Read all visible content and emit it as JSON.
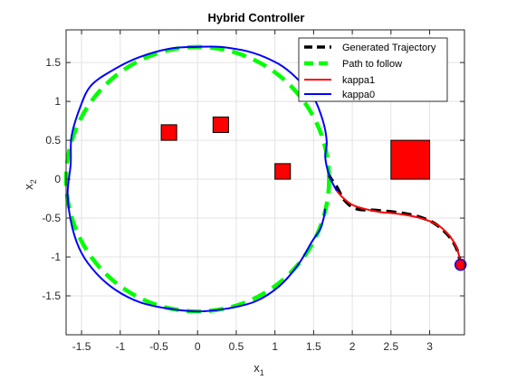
{
  "chart_data": {
    "type": "line",
    "title": "Hybrid Controller",
    "xlabel": {
      "base": "x",
      "sub": "1"
    },
    "ylabel": {
      "base": "x",
      "sub": "2"
    },
    "xlim": [
      -1.7,
      3.45
    ],
    "ylim": [
      -2.0,
      1.92
    ],
    "xticks": [
      -1.5,
      -1,
      -0.5,
      0,
      0.5,
      1,
      1.5,
      2,
      2.5,
      3
    ],
    "xtick_labels": [
      "-1.5",
      "-1",
      "-0.5",
      "0",
      "0.5",
      "1",
      "1.5",
      "2",
      "2.5",
      "3"
    ],
    "yticks": [
      -1.5,
      -1,
      -0.5,
      0,
      0.5,
      1,
      1.5
    ],
    "ytick_labels": [
      "-1.5",
      "-1",
      "-0.5",
      "0",
      "0.5",
      "1",
      "1.5"
    ],
    "grid": true,
    "legend_location": "top-right",
    "colors": {
      "generated": "#000000",
      "path": "#00ff00",
      "kappa1": "#ff0000",
      "kappa0": "#0000ff",
      "obstacle": "#ff0000",
      "start_marker": "#ff0000"
    },
    "series": [
      {
        "name": "Generated Trajectory",
        "style": "dashed",
        "x": [
          3.4,
          3.37,
          3.3,
          3.2,
          3.05,
          2.85,
          2.6,
          2.3,
          2.05,
          1.9,
          1.8,
          1.73,
          1.7
        ],
        "y": [
          -1.12,
          -0.95,
          -0.8,
          -0.68,
          -0.56,
          -0.48,
          -0.43,
          -0.4,
          -0.38,
          -0.27,
          -0.1,
          0.0,
          0.05
        ]
      },
      {
        "name": "Path to follow",
        "style": "dashed",
        "shape": "circle",
        "center": [
          0,
          0
        ],
        "radius": 1.7,
        "x": [
          1.7,
          1.47,
          0.85,
          0,
          -0.85,
          -1.47,
          -1.7,
          -1.47,
          -0.85,
          0,
          0.85,
          1.47,
          1.7
        ],
        "y": [
          0,
          0.85,
          1.47,
          1.7,
          1.47,
          0.85,
          0,
          -0.85,
          -1.47,
          -1.7,
          -1.47,
          -0.85,
          0
        ]
      },
      {
        "name": "kappa1",
        "style": "solid",
        "x": [
          3.4,
          3.38,
          3.33,
          3.25,
          3.12,
          2.95,
          2.75,
          2.55,
          2.35,
          2.15,
          2.0,
          1.88,
          1.8
        ],
        "y": [
          -1.1,
          -0.98,
          -0.84,
          -0.72,
          -0.6,
          -0.52,
          -0.47,
          -0.44,
          -0.42,
          -0.38,
          -0.33,
          -0.24,
          -0.15
        ]
      },
      {
        "name": "kappa0",
        "style": "solid",
        "x": [
          1.8,
          1.73,
          1.68,
          1.65,
          1.67,
          1.62,
          1.5,
          1.28,
          1.05,
          0.7,
          0.3,
          0.0,
          -0.35,
          -0.75,
          -1.1,
          -1.38,
          -1.52,
          -1.63,
          -1.64,
          -1.68,
          -1.62,
          -1.5,
          -1.3,
          -1.05,
          -0.75,
          -0.4,
          0.0,
          0.4,
          0.75,
          1.05,
          1.3,
          1.48,
          1.58,
          1.63,
          1.65
        ],
        "y": [
          -0.15,
          -0.02,
          0.12,
          0.3,
          0.48,
          0.75,
          1.05,
          1.3,
          1.48,
          1.63,
          1.7,
          1.7,
          1.68,
          1.57,
          1.4,
          1.2,
          0.92,
          0.55,
          0.2,
          -0.2,
          -0.62,
          -0.95,
          -1.22,
          -1.43,
          -1.58,
          -1.66,
          -1.7,
          -1.66,
          -1.57,
          -1.38,
          -1.1,
          -0.8,
          -0.65,
          -0.5,
          -0.38
        ]
      }
    ],
    "obstacles": [
      {
        "x": [
          -0.47,
          -0.27
        ],
        "y": [
          0.5,
          0.7
        ]
      },
      {
        "x": [
          0.2,
          0.4
        ],
        "y": [
          0.6,
          0.8
        ]
      },
      {
        "x": [
          1.0,
          1.2
        ],
        "y": [
          0.0,
          0.2
        ]
      },
      {
        "x": [
          2.5,
          3.0
        ],
        "y": [
          0.0,
          0.5
        ]
      }
    ],
    "start_point": {
      "x": 3.4,
      "y": -1.1
    }
  }
}
